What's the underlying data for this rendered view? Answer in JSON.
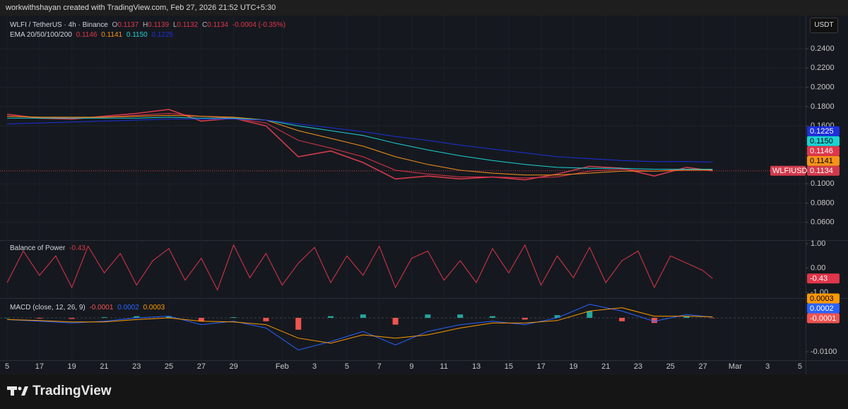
{
  "header": {
    "title": "workwithshayan created with TradingView.com, Feb 27, 2026 21:52 UTC+5:30",
    "currency": "USDT"
  },
  "footer": {
    "brand": "TradingView"
  },
  "chart_data": [
    {
      "type": "line",
      "symbol": "WLFI / TetherUS · 4h · Binance",
      "symbol_label": "WLFIUSDT",
      "ohlc": [
        {
          "label": "O",
          "value": 0.1137
        },
        {
          "label": "H",
          "value": 0.1139
        },
        {
          "label": "L",
          "value": 0.1132
        },
        {
          "label": "C",
          "value": 0.1134
        }
      ],
      "change": "-0.0004 (-0.35%)",
      "indicator": "EMA 20/50/100/200",
      "xlim": [
        -0.44,
        49.35
      ],
      "xticks": [
        {
          "value": 0,
          "label": "5"
        },
        {
          "value": 2,
          "label": "17"
        },
        {
          "value": 4,
          "label": "19"
        },
        {
          "value": 6,
          "label": "21"
        },
        {
          "value": 8,
          "label": "23"
        },
        {
          "value": 10,
          "label": "25"
        },
        {
          "value": 12,
          "label": "27"
        },
        {
          "value": 14,
          "label": "29"
        },
        {
          "value": 17,
          "label": "Feb"
        },
        {
          "value": 19,
          "label": "3"
        },
        {
          "value": 21,
          "label": "5"
        },
        {
          "value": 23,
          "label": "7"
        },
        {
          "value": 25,
          "label": "9"
        },
        {
          "value": 27,
          "label": "11"
        },
        {
          "value": 29,
          "label": "13"
        },
        {
          "value": 31,
          "label": "15"
        },
        {
          "value": 33,
          "label": "17"
        },
        {
          "value": 35,
          "label": "19"
        },
        {
          "value": 37,
          "label": "21"
        },
        {
          "value": 39,
          "label": "23"
        },
        {
          "value": 41,
          "label": "25"
        },
        {
          "value": 43,
          "label": "27"
        },
        {
          "value": 45,
          "label": "Mar"
        },
        {
          "value": 47,
          "label": "3"
        },
        {
          "value": 49,
          "label": "5"
        }
      ],
      "ylim": [
        0.0429,
        0.2686
      ],
      "yticks": [
        {
          "value": 0.24,
          "label": "0.2400"
        },
        {
          "value": 0.22,
          "label": "0.2200"
        },
        {
          "value": 0.2,
          "label": "0.2000"
        },
        {
          "value": 0.18,
          "label": "0.1800"
        },
        {
          "value": 0.16,
          "label": "0.1600"
        },
        {
          "value": 0.1,
          "label": "0.1000"
        },
        {
          "value": 0.08,
          "label": "0.0800"
        },
        {
          "value": 0.06,
          "label": "0.0600"
        }
      ],
      "grid": true,
      "x": [
        0,
        2,
        4,
        6,
        8,
        10,
        12,
        14,
        16,
        18,
        20,
        22,
        24,
        26,
        28,
        30,
        32,
        34,
        36,
        38,
        40,
        42,
        43.6
      ],
      "series": [
        {
          "name": "WLFIUSDT",
          "color": "#d23a4c",
          "values": [
            0.172,
            0.168,
            0.167,
            0.17,
            0.173,
            0.177,
            0.165,
            0.168,
            0.16,
            0.128,
            0.134,
            0.122,
            0.105,
            0.108,
            0.105,
            0.107,
            0.104,
            0.11,
            0.118,
            0.116,
            0.108,
            0.117,
            0.1134
          ]
        },
        {
          "color": "#e0354a",
          "last_label": "0.1146",
          "values": [
            0.17,
            0.169,
            0.168,
            0.169,
            0.171,
            0.173,
            0.17,
            0.168,
            0.163,
            0.145,
            0.137,
            0.128,
            0.114,
            0.11,
            0.107,
            0.107,
            0.106,
            0.107,
            0.113,
            0.115,
            0.113,
            0.115,
            0.1146
          ]
        },
        {
          "color": "#f7931a",
          "last_label": "0.1141",
          "values": [
            0.17,
            0.169,
            0.169,
            0.169,
            0.17,
            0.171,
            0.17,
            0.169,
            0.166,
            0.155,
            0.147,
            0.139,
            0.128,
            0.12,
            0.114,
            0.111,
            0.109,
            0.109,
            0.111,
            0.113,
            0.113,
            0.114,
            0.1141
          ]
        },
        {
          "color": "#1bd3d3",
          "last_label": "0.1150",
          "values": [
            0.168,
            0.168,
            0.168,
            0.168,
            0.168,
            0.169,
            0.168,
            0.168,
            0.166,
            0.16,
            0.155,
            0.15,
            0.142,
            0.135,
            0.129,
            0.124,
            0.12,
            0.117,
            0.116,
            0.116,
            0.115,
            0.115,
            0.115
          ]
        },
        {
          "color": "#1c2fdc",
          "last_label": "0.1225",
          "values": [
            0.162,
            0.163,
            0.164,
            0.165,
            0.166,
            0.167,
            0.167,
            0.167,
            0.166,
            0.162,
            0.158,
            0.154,
            0.149,
            0.145,
            0.14,
            0.136,
            0.132,
            0.128,
            0.126,
            0.124,
            0.123,
            0.123,
            0.1225
          ]
        }
      ]
    },
    {
      "type": "line",
      "title": "Balance of Power",
      "xlim": [
        -0.44,
        49.35
      ],
      "ylim": [
        -1.12,
        1.06
      ],
      "yticks": [
        {
          "value": 1,
          "label": "1.00"
        },
        {
          "value": 0,
          "label": "0.00"
        },
        {
          "value": -1,
          "label": "-1.00"
        }
      ],
      "x": [
        0,
        1,
        2,
        3,
        4,
        5,
        6,
        7,
        8,
        9,
        10,
        11,
        12,
        13,
        14,
        15,
        16,
        17,
        18,
        19,
        20,
        21,
        22,
        23,
        24,
        25,
        26,
        27,
        28,
        29,
        30,
        31,
        32,
        33,
        34,
        35,
        36,
        37,
        38,
        39,
        40,
        41,
        42,
        43,
        43.6
      ],
      "series": [
        {
          "color": "#e0354a",
          "values": [
            -0.6,
            0.7,
            -0.3,
            0.5,
            -0.8,
            0.9,
            -0.2,
            0.6,
            -0.7,
            0.3,
            0.8,
            -0.5,
            0.4,
            -0.9,
            0.95,
            -0.4,
            0.6,
            -0.7,
            0.2,
            0.85,
            -0.6,
            0.5,
            -0.3,
            0.9,
            -0.8,
            0.4,
            0.7,
            -0.5,
            0.3,
            -0.6,
            0.8,
            -0.2,
            0.95,
            -0.7,
            0.5,
            -0.4,
            0.85,
            -0.6,
            0.3,
            0.7,
            -0.8,
            0.5,
            0.2,
            -0.1,
            -0.43
          ]
        }
      ]
    },
    {
      "type": "combo",
      "title": "MACD (close, 12, 26, 9)",
      "xlim": [
        -0.44,
        49.35
      ],
      "ylim": [
        -0.0121,
        0.005
      ],
      "yticks": [
        {
          "value": -0.01,
          "label": "-0.0100"
        }
      ],
      "x": [
        0,
        2,
        4,
        6,
        8,
        10,
        12,
        14,
        16,
        18,
        20,
        22,
        24,
        26,
        28,
        30,
        32,
        34,
        36,
        38,
        40,
        42,
        43.6
      ],
      "series": [
        {
          "type": "bar",
          "color": "#ef5350",
          "up_color": "#26a69a",
          "values": [
            0,
            -0.0002,
            -0.0003,
            0.0002,
            0.0005,
            0.0005,
            -0.001,
            0.0002,
            -0.001,
            -0.0035,
            0.0005,
            0.001,
            -0.002,
            0.001,
            0.001,
            0.0005,
            -0.0005,
            0.0008,
            0.002,
            -0.001,
            -0.0015,
            0.0005,
            -0.0001
          ]
        },
        {
          "type": "line",
          "color": "#2962ff",
          "values": [
            -0.0005,
            -0.001,
            -0.0015,
            -0.001,
            0,
            0.0005,
            -0.002,
            -0.001,
            -0.003,
            -0.0095,
            -0.007,
            -0.004,
            -0.008,
            -0.004,
            -0.002,
            -0.001,
            -0.002,
            0,
            0.004,
            0.002,
            -0.001,
            0.001,
            0.0002
          ]
        },
        {
          "type": "line",
          "color": "#ff9800",
          "values": [
            -0.0005,
            -0.0008,
            -0.0012,
            -0.0012,
            -0.0005,
            0,
            -0.001,
            -0.0012,
            -0.002,
            -0.006,
            -0.0075,
            -0.005,
            -0.006,
            -0.005,
            -0.003,
            -0.0015,
            -0.0015,
            -0.0008,
            0.002,
            0.003,
            0.0005,
            0.0005,
            0.0003
          ]
        }
      ]
    }
  ]
}
